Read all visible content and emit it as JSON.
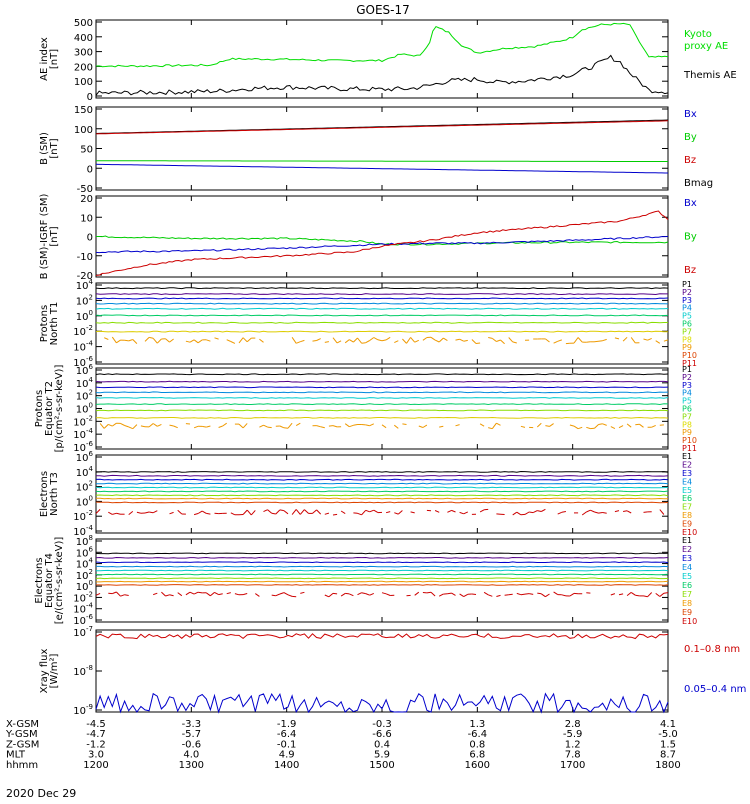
{
  "title": "GOES-17",
  "date": "2020 Dec 29",
  "x_axis": {
    "hours": [
      12,
      13,
      14,
      15,
      16,
      17,
      18
    ],
    "row_labels": [
      "X-GSM",
      "Y-GSM",
      "Z-GSM",
      "MLT",
      "hhmm"
    ],
    "rows": [
      [
        "-4.5",
        "-3.3",
        "-1.9",
        "-0.3",
        "1.3",
        "2.8",
        "4.1"
      ],
      [
        "-4.7",
        "-5.7",
        "-6.4",
        "-6.6",
        "-6.4",
        "-5.9",
        "-5.0"
      ],
      [
        "-1.2",
        "-0.6",
        "-0.1",
        "0.4",
        "0.8",
        "1.2",
        "1.5"
      ],
      [
        "3.0",
        "4.0",
        "4.9",
        "5.9",
        "6.8",
        "7.8",
        "8.7"
      ],
      [
        "1200",
        "1300",
        "1400",
        "1500",
        "1600",
        "1700",
        "1800"
      ]
    ]
  },
  "chart_data": [
    {
      "type": "line",
      "id": "ae",
      "ylabel": [
        "AE index",
        "[nT]"
      ],
      "yticks": [
        "500",
        "400",
        "300",
        "200",
        "100",
        "0"
      ],
      "ylim": [
        0,
        500
      ],
      "legend": [
        {
          "label": "Kyoto",
          "color": "#00dd00"
        },
        {
          "label": "proxy AE",
          "color": "#00dd00"
        },
        {
          "label": "Themis AE",
          "color": "#000000"
        }
      ],
      "series": [
        {
          "name": "Kyoto proxy AE",
          "color": "#00dd00",
          "x": [
            12.0,
            12.5,
            13.0,
            13.2,
            13.4,
            13.7,
            14.0,
            14.5,
            15.0,
            15.2,
            15.4,
            15.5,
            15.55,
            15.7,
            15.85,
            16.0,
            16.3,
            16.6,
            16.9,
            17.0,
            17.1,
            17.3,
            17.5,
            17.6,
            17.65,
            17.8,
            18.0
          ],
          "y": [
            205,
            205,
            210,
            210,
            250,
            250,
            248,
            240,
            240,
            280,
            270,
            360,
            460,
            420,
            330,
            290,
            320,
            330,
            370,
            390,
            440,
            470,
            475,
            470,
            410,
            260,
            265
          ]
        },
        {
          "name": "Themis AE",
          "color": "#000000",
          "x": [
            12.0,
            12.5,
            13.0,
            13.3,
            13.6,
            14.0,
            14.5,
            15.0,
            15.3,
            15.5,
            15.7,
            16.0,
            16.2,
            16.5,
            17.0,
            17.2,
            17.4,
            17.5,
            17.6,
            17.8,
            18.0
          ],
          "y": [
            30,
            35,
            40,
            45,
            60,
            70,
            60,
            55,
            60,
            80,
            110,
            120,
            100,
            110,
            150,
            200,
            260,
            230,
            160,
            50,
            40
          ]
        }
      ]
    },
    {
      "type": "line",
      "id": "bsm",
      "ylabel": [
        "B (SM)",
        "[nT]"
      ],
      "yticks": [
        "150",
        "100",
        "50",
        "0",
        "-50"
      ],
      "ylim": [
        -60,
        150
      ],
      "legend": [
        {
          "label": "Bx",
          "color": "#0000cc"
        },
        {
          "label": "By",
          "color": "#00cc00"
        },
        {
          "label": "Bz",
          "color": "#cc0000"
        },
        {
          "label": "Bmag",
          "color": "#000000"
        }
      ],
      "series": [
        {
          "name": "Bmag",
          "color": "#000000",
          "x": [
            12,
            18
          ],
          "y": [
            83,
            117
          ]
        },
        {
          "name": "Bz",
          "color": "#cc0000",
          "x": [
            12,
            18
          ],
          "y": [
            82,
            115
          ]
        },
        {
          "name": "By",
          "color": "#00cc00",
          "x": [
            12,
            18
          ],
          "y": [
            14,
            12
          ]
        },
        {
          "name": "Bx",
          "color": "#0000cc",
          "x": [
            12,
            18
          ],
          "y": [
            5,
            -17
          ]
        }
      ]
    },
    {
      "type": "line",
      "id": "bdiff",
      "ylabel": [
        "B (SM)-IGRF (SM)",
        "[nT]"
      ],
      "yticks": [
        "20",
        "10",
        "0",
        "-10",
        "-20"
      ],
      "ylim": [
        -21,
        21
      ],
      "legend": [
        {
          "label": "Bx",
          "color": "#0000cc"
        },
        {
          "label": "By",
          "color": "#00cc00"
        },
        {
          "label": "Bz",
          "color": "#cc0000"
        }
      ],
      "series": [
        {
          "name": "By",
          "color": "#00cc00",
          "x": [
            12.0,
            13.0,
            14.0,
            14.8,
            15.0,
            15.5,
            16.0,
            17.0,
            18.0
          ],
          "y": [
            0,
            -1,
            -1,
            -2.5,
            -4,
            -4,
            -3.5,
            -3,
            -3
          ]
        },
        {
          "name": "Bx",
          "color": "#0000cc",
          "x": [
            12.0,
            13.0,
            14.0,
            15.0,
            15.5,
            16.0,
            17.0,
            18.0
          ],
          "y": [
            -8,
            -7.5,
            -6,
            -4,
            -3.5,
            -3.5,
            -2,
            0
          ]
        },
        {
          "name": "Bz",
          "color": "#cc0000",
          "x": [
            12.0,
            12.5,
            13.0,
            14.0,
            14.7,
            15.0,
            15.5,
            16.0,
            16.5,
            17.0,
            17.5,
            17.9,
            18.0
          ],
          "y": [
            -20,
            -15,
            -12,
            -10,
            -8,
            -5,
            -2,
            2,
            4,
            6,
            8,
            13,
            9
          ]
        }
      ]
    },
    {
      "type": "line",
      "id": "prot_t1",
      "log": true,
      "ylabel": [
        "Protons",
        "North T1"
      ],
      "yticks": [
        "10^4",
        "10^2",
        "10^0",
        "10^-2",
        "10^-4",
        "10^-6"
      ],
      "ylim_exp": [
        -7,
        4
      ],
      "legend": [
        {
          "label": "P1",
          "color": "#000000"
        },
        {
          "label": "P2",
          "color": "#550088"
        },
        {
          "label": "P3",
          "color": "#0000cc"
        },
        {
          "label": "P4",
          "color": "#0088dd"
        },
        {
          "label": "P5",
          "color": "#00cccc"
        },
        {
          "label": "P6",
          "color": "#00cc66"
        },
        {
          "label": "P7",
          "color": "#88dd00"
        },
        {
          "label": "P8",
          "color": "#dddd00"
        },
        {
          "label": "P9",
          "color": "#ee9900"
        },
        {
          "label": "P10",
          "color": "#dd4400"
        },
        {
          "label": "P11",
          "color": "#cc0000"
        }
      ],
      "series": [
        {
          "name": "P1",
          "color": "#000000",
          "y": 3.3
        },
        {
          "name": "P2",
          "color": "#550088",
          "y": 2.5
        },
        {
          "name": "P3",
          "color": "#0000cc",
          "y": 1.9
        },
        {
          "name": "P4",
          "color": "#0088dd",
          "y": 1.2
        },
        {
          "name": "P5",
          "color": "#00cccc",
          "y": 0.5
        },
        {
          "name": "P6",
          "color": "#00cc66",
          "y": -0.4
        },
        {
          "name": "P7",
          "color": "#88dd00",
          "y": -1.4
        },
        {
          "name": "P8",
          "color": "#ddcc00",
          "y": -2.6
        },
        {
          "name": "P9",
          "color": "#ee9900",
          "y": -3.8,
          "noisy": true
        }
      ]
    },
    {
      "type": "line",
      "id": "prot_t2",
      "log": true,
      "ylabel": [
        "Protons",
        "Equator T2",
        "[p/(cm²-s-sr-keV)]"
      ],
      "yticks": [
        "10^6",
        "10^4",
        "10^2",
        "10^0",
        "10^-2",
        "10^-4",
        "10^-6"
      ],
      "ylim_exp": [
        -7,
        6
      ],
      "legend": [
        {
          "label": "P1",
          "color": "#000000"
        },
        {
          "label": "P2",
          "color": "#550088"
        },
        {
          "label": "P3",
          "color": "#0000cc"
        },
        {
          "label": "P4",
          "color": "#0088dd"
        },
        {
          "label": "P5",
          "color": "#00cccc"
        },
        {
          "label": "P6",
          "color": "#00cc66"
        },
        {
          "label": "P7",
          "color": "#88dd00"
        },
        {
          "label": "P8",
          "color": "#dddd00"
        },
        {
          "label": "P9",
          "color": "#ee9900"
        },
        {
          "label": "P10",
          "color": "#dd4400"
        },
        {
          "label": "P11",
          "color": "#cc0000"
        }
      ],
      "series": [
        {
          "name": "P1",
          "color": "#000000",
          "y": 5.0
        },
        {
          "name": "P2",
          "color": "#550088",
          "y": 3.8
        },
        {
          "name": "P3",
          "color": "#0000cc",
          "y": 2.9
        },
        {
          "name": "P4",
          "color": "#0088dd",
          "y": 2.1
        },
        {
          "name": "P5",
          "color": "#00cccc",
          "y": 1.2
        },
        {
          "name": "P6",
          "color": "#00cc66",
          "y": 0.2
        },
        {
          "name": "P7",
          "color": "#88dd00",
          "y": -0.8
        },
        {
          "name": "P8",
          "color": "#ddcc00",
          "y": -2.0
        },
        {
          "name": "P9",
          "color": "#ee9900",
          "y": -3.3,
          "noisy": true
        }
      ]
    },
    {
      "type": "line",
      "id": "elec_t3",
      "log": true,
      "ylabel": [
        "Electrons",
        "North T3"
      ],
      "yticks": [
        "10^6",
        "10^4",
        "10^2",
        "10^0",
        "10^-2",
        "10^-4"
      ],
      "ylim_exp": [
        -5,
        7
      ],
      "legend": [
        {
          "label": "E1",
          "color": "#000000"
        },
        {
          "label": "E2",
          "color": "#550088"
        },
        {
          "label": "E3",
          "color": "#0000cc"
        },
        {
          "label": "E4",
          "color": "#0088dd"
        },
        {
          "label": "E5",
          "color": "#00cccc"
        },
        {
          "label": "E6",
          "color": "#00cc66"
        },
        {
          "label": "E7",
          "color": "#88dd00"
        },
        {
          "label": "E8",
          "color": "#ee9900"
        },
        {
          "label": "E9",
          "color": "#dd4400"
        },
        {
          "label": "E10",
          "color": "#cc0000"
        }
      ],
      "series": [
        {
          "name": "E1",
          "color": "#000000",
          "y": 4.4
        },
        {
          "name": "E2",
          "color": "#550088",
          "y": 3.8
        },
        {
          "name": "E3",
          "color": "#0000cc",
          "y": 3.2
        },
        {
          "name": "E4",
          "color": "#0088dd",
          "y": 2.6
        },
        {
          "name": "E5",
          "color": "#00cccc",
          "y": 2.0
        },
        {
          "name": "E6",
          "color": "#00cc66",
          "y": 1.4
        },
        {
          "name": "E7",
          "color": "#88dd00",
          "y": 0.8
        },
        {
          "name": "E8",
          "color": "#ee9900",
          "y": 0.3
        },
        {
          "name": "E9",
          "color": "#dd4400",
          "y": -0.3
        },
        {
          "name": "E10",
          "color": "#cc0000",
          "y": -1.8,
          "noisy": true
        }
      ]
    },
    {
      "type": "line",
      "id": "elec_t4",
      "log": true,
      "ylabel": [
        "Electrons",
        "Equator T4",
        "[e/(cm²-s-sr-keV)]"
      ],
      "yticks": [
        "10^8",
        "10^6",
        "10^4",
        "10^2",
        "10^0",
        "10^-2",
        "10^-4",
        "10^-6"
      ],
      "ylim_exp": [
        -7,
        8
      ],
      "legend": [
        {
          "label": "E1",
          "color": "#000000"
        },
        {
          "label": "E2",
          "color": "#550088"
        },
        {
          "label": "E3",
          "color": "#0000cc"
        },
        {
          "label": "E4",
          "color": "#0088dd"
        },
        {
          "label": "E5",
          "color": "#00cccc"
        },
        {
          "label": "E6",
          "color": "#00cc66"
        },
        {
          "label": "E7",
          "color": "#88dd00"
        },
        {
          "label": "E8",
          "color": "#ee9900"
        },
        {
          "label": "E9",
          "color": "#dd4400"
        },
        {
          "label": "E10",
          "color": "#cc0000"
        }
      ],
      "series": [
        {
          "name": "E1",
          "color": "#000000",
          "y": 5.4
        },
        {
          "name": "E2",
          "color": "#550088",
          "y": 4.6
        },
        {
          "name": "E3",
          "color": "#0000cc",
          "y": 3.8
        },
        {
          "name": "E4",
          "color": "#0088dd",
          "y": 3.0
        },
        {
          "name": "E5",
          "color": "#00cccc",
          "y": 2.3
        },
        {
          "name": "E6",
          "color": "#00cc66",
          "y": 1.6
        },
        {
          "name": "E7",
          "color": "#88dd00",
          "y": 0.9
        },
        {
          "name": "E8",
          "color": "#ee9900",
          "y": 0.3
        },
        {
          "name": "E9",
          "color": "#dd4400",
          "y": -0.3
        },
        {
          "name": "E10",
          "color": "#cc0000",
          "y": -2.0,
          "noisy": true
        }
      ]
    },
    {
      "type": "line",
      "id": "xray",
      "log": true,
      "ylabel": [
        "Xray flux",
        "[W/m²]"
      ],
      "yticks": [
        "10^-7",
        "10^-8",
        "10^-9"
      ],
      "ylim_exp": [
        -9,
        -7
      ],
      "legend": [
        {
          "label": "0.1–0.8 nm",
          "color": "#cc0000"
        },
        {
          "label": "0.05–0.4 nm",
          "color": "#0000cc"
        }
      ],
      "series": [
        {
          "name": "0.1-0.8 nm",
          "color": "#cc0000",
          "y": -7.15
        },
        {
          "name": "0.05-0.4 nm",
          "color": "#0000cc",
          "y": -8.8,
          "noisy": true
        }
      ]
    }
  ]
}
